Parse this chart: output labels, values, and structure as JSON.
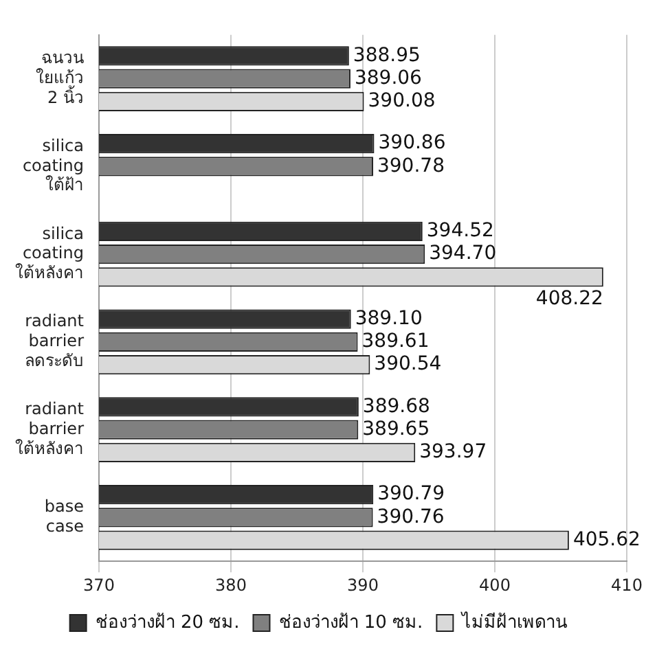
{
  "chart_data": {
    "type": "bar",
    "orientation": "horizontal",
    "categories": [
      "ฉนวน\nใยแก้ว\n2 นิ้ว",
      "silica\ncoating\nใต้ฝ้า",
      "silica\ncoating\nใต้หลังคา",
      "radiant\nbarrier\nลดระดับ",
      "radiant\nbarrier\nใต้หลังคา",
      "base\ncase"
    ],
    "series": [
      {
        "name": "ช่องว่างฝ้า 20 ซม.",
        "color": "#333333",
        "values": [
          388.95,
          390.86,
          394.52,
          389.1,
          389.68,
          390.79
        ],
        "value_labels": [
          "388.95",
          "390.86",
          "394.52",
          "389.10",
          "389.68",
          "390.79"
        ]
      },
      {
        "name": "ช่องว่างฝ้า 10 ซม.",
        "color": "#808080",
        "values": [
          389.06,
          390.78,
          394.7,
          389.61,
          389.65,
          390.76
        ],
        "value_labels": [
          "389.06",
          "390.78",
          "394.70",
          "389.61",
          "389.65",
          "390.76"
        ]
      },
      {
        "name": "ไม่มีฝ้าเพดาน",
        "color": "#d9d9d9",
        "values": [
          390.08,
          null,
          408.22,
          390.54,
          393.97,
          405.62
        ],
        "value_labels": [
          "390.08",
          null,
          "408.22",
          "390.54",
          "393.97",
          "405.62"
        ]
      }
    ],
    "xlim": [
      370,
      410
    ],
    "xticks": [
      370,
      380,
      390,
      400,
      410
    ],
    "grid": "x",
    "legend": "bottom"
  }
}
